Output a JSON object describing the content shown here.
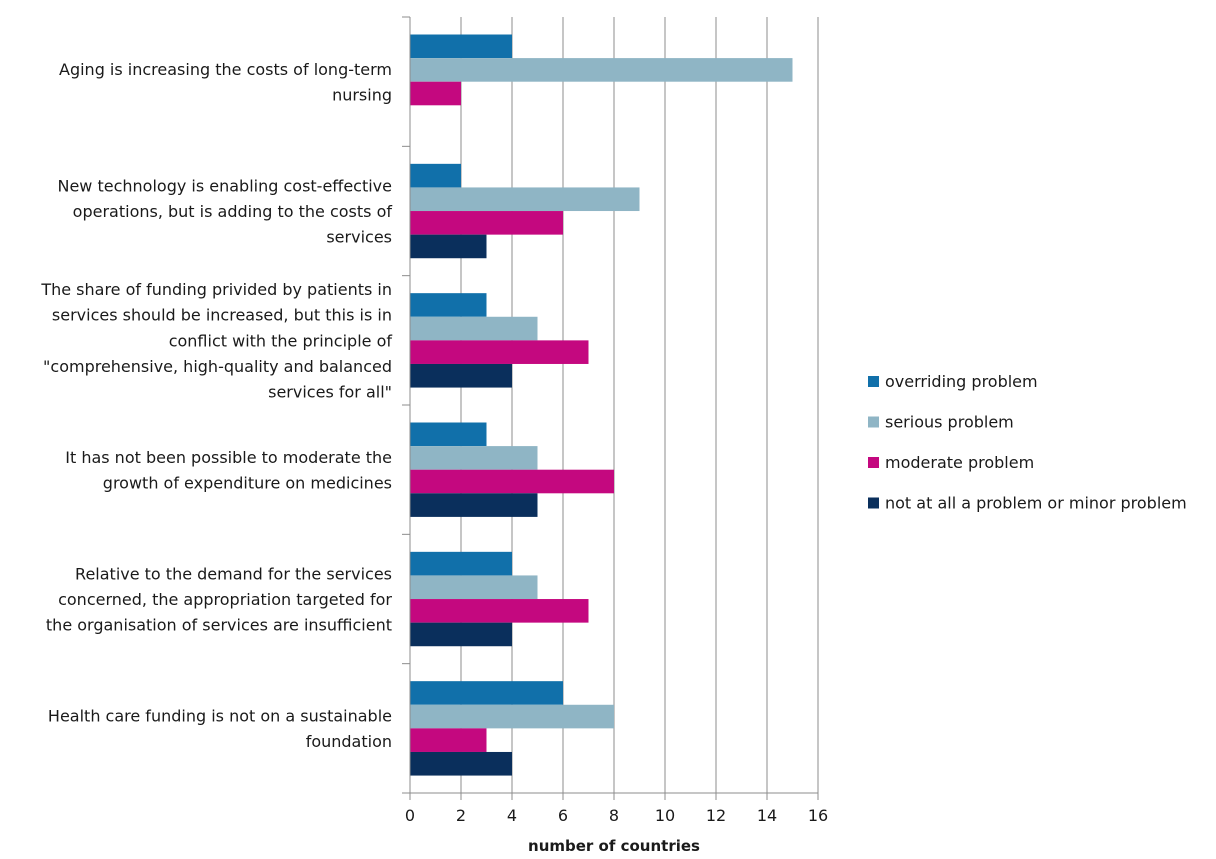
{
  "chart_data": {
    "type": "bar",
    "orientation": "horizontal",
    "categories": [
      [
        "Aging is increasing the costs of long-term",
        "nursing"
      ],
      [
        "New technology is enabling cost-effective",
        "operations, but is adding to the costs of",
        "services"
      ],
      [
        "The share of funding privided by patients in",
        "services should be increased, but this is in",
        "conflict with the principle of",
        "\"comprehensive, high-quality and balanced",
        "services for all\""
      ],
      [
        "It has not been possible to moderate the",
        "growth of expenditure on medicines"
      ],
      [
        "Relative to the demand for the services",
        "concerned, the appropriation targeted for",
        "the organisation of services are insufficient"
      ],
      [
        "Health care funding is not on a sustainable",
        "foundation"
      ]
    ],
    "series": [
      {
        "name": "overriding problem",
        "color": "#1170aa",
        "values": [
          4,
          2,
          3,
          3,
          4,
          6
        ]
      },
      {
        "name": "serious problem",
        "color": "#8fb5c5",
        "values": [
          15,
          9,
          5,
          5,
          5,
          8
        ]
      },
      {
        "name": "moderate problem",
        "color": "#c4087f",
        "values": [
          2,
          6,
          7,
          8,
          7,
          3
        ]
      },
      {
        "name": "not at all a problem or minor problem",
        "color": "#0a2f5c",
        "values": [
          0,
          3,
          4,
          5,
          4,
          4
        ]
      }
    ],
    "xlabel": "number of countries",
    "ylabel": "",
    "xlim": [
      0,
      16
    ],
    "xticks": [
      0,
      2,
      4,
      6,
      8,
      10,
      12,
      14,
      16
    ],
    "grid": true,
    "legend_position": "right"
  }
}
